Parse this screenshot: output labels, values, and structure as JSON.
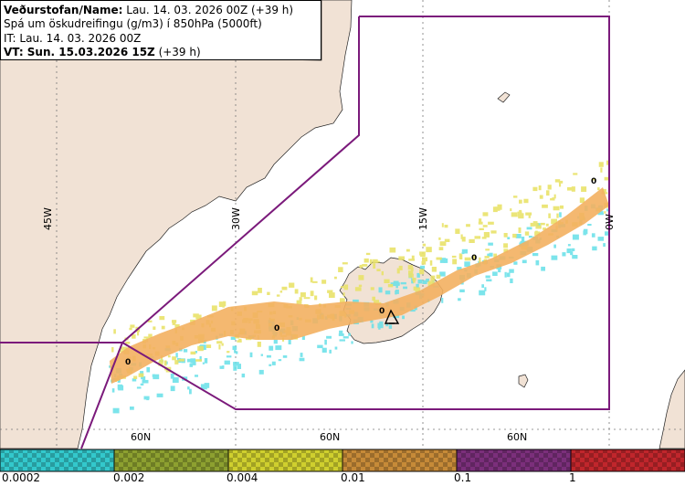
{
  "header": {
    "line1_label": "Veðurstofan/Name:",
    "line1_value": " Lau. 14. 03. 2026 00Z (+39 h)",
    "line2": "Spá um öskudreifingu (g/m3) í 850hPa (5000ft)",
    "line3": "IT: Lau. 14. 03. 2026 00Z",
    "line4_label": "VT: Sun. 15.03.2026 15Z",
    "line4_value": " (+39 h)"
  },
  "graticule": {
    "meridians": [
      "45W",
      "30W",
      "15W",
      "0W"
    ],
    "parallels": [
      "60N",
      "60N",
      "60N"
    ]
  },
  "contour_labels": [
    "0",
    "0",
    "0",
    "0",
    "0"
  ],
  "legend": {
    "labels": [
      "0.0002",
      "0.002",
      "0.004",
      "0.01",
      "0.1",
      "1"
    ],
    "colors": [
      "#33c8cc",
      "#8da030",
      "#cfcf2e",
      "#c68a38",
      "#7b2f7b",
      "#c0262c"
    ]
  },
  "colors": {
    "land": "#f1e2d5",
    "sea": "#ffffff",
    "boundary": "#7b1a7b",
    "plume_orange": "#f3b060",
    "plume_cyan": "#66e0e8"
  }
}
